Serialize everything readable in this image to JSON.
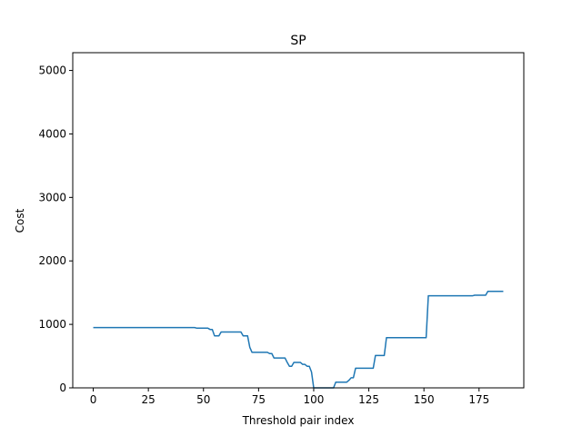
{
  "chart_data": {
    "type": "line",
    "title": "SP",
    "xlabel": "Threshold pair index",
    "ylabel": "Cost",
    "xlim": [
      -9.3,
      195.3
    ],
    "ylim": [
      0,
      5280
    ],
    "xticks": [
      0,
      25,
      50,
      75,
      100,
      125,
      150,
      175
    ],
    "yticks": [
      0,
      1000,
      2000,
      3000,
      4000,
      5000
    ],
    "grid": false,
    "color": "#1f77b4",
    "series": [
      {
        "x": [
          0,
          46,
          47,
          52,
          53,
          54,
          55,
          57,
          58,
          67,
          68,
          70,
          71,
          72,
          73,
          79,
          80,
          81,
          82,
          87,
          88,
          89,
          90,
          91,
          92,
          93,
          94,
          95,
          96,
          97,
          98,
          99,
          100,
          101,
          102,
          109,
          110,
          115,
          116,
          117,
          118,
          119,
          120,
          127,
          128,
          131,
          132,
          133,
          150,
          151,
          152,
          172,
          173,
          178,
          179,
          186
        ],
        "y": [
          950,
          950,
          940,
          940,
          920,
          920,
          820,
          820,
          880,
          880,
          820,
          820,
          640,
          560,
          560,
          560,
          540,
          540,
          470,
          470,
          400,
          340,
          340,
          400,
          400,
          400,
          400,
          370,
          370,
          340,
          340,
          250,
          0,
          0,
          0,
          0,
          90,
          90,
          120,
          160,
          160,
          310,
          310,
          310,
          510,
          510,
          510,
          790,
          790,
          790,
          1450,
          1450,
          1460,
          1460,
          1520,
          1520
        ]
      }
    ]
  }
}
